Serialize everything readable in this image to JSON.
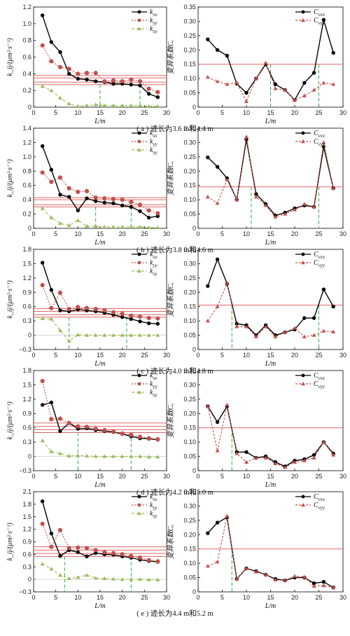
{
  "chart_data": [
    {
      "id": "a-k",
      "type": "line",
      "xlabel": "L/m",
      "ylabel": "k_ij/(μm²·s⁻¹)",
      "xlim": [
        0,
        30
      ],
      "ylim": [
        0,
        1.2
      ],
      "xticks": [
        0,
        5,
        10,
        15,
        20,
        25,
        30
      ],
      "yticks": [
        0,
        0.2,
        0.4,
        0.6,
        0.8,
        1.0,
        1.2
      ],
      "ytick_labels": [
        "0",
        "0.2",
        "0.4",
        "0.6",
        "0.8",
        "1.0",
        "1.2"
      ],
      "x": [
        2,
        4,
        6,
        8,
        10,
        12,
        14,
        16,
        18,
        20,
        22,
        24,
        26,
        28
      ],
      "series": [
        {
          "name": "k_xx",
          "values": [
            1.1,
            0.78,
            0.66,
            0.4,
            0.34,
            0.33,
            0.31,
            0.3,
            0.28,
            0.28,
            0.27,
            0.26,
            0.16,
            0.12
          ]
        },
        {
          "name": "k_yy",
          "values": [
            0.74,
            0.55,
            0.48,
            0.46,
            0.4,
            0.41,
            0.41,
            0.31,
            0.32,
            0.31,
            0.33,
            0.31,
            0.22,
            0.18
          ]
        },
        {
          "name": "k_xy",
          "values": [
            0.25,
            0.2,
            0.11,
            0.04,
            0.01,
            0.02,
            0.03,
            0.02,
            0.02,
            0.02,
            0.02,
            0.02,
            0.01,
            0.01
          ]
        }
      ],
      "ref_lines": [
        0.38,
        0.35,
        0.3,
        0.27
      ],
      "vlines": [
        15,
        24
      ]
    },
    {
      "id": "a-c",
      "type": "line",
      "ylabel": "变异系数Cᵥ",
      "xlabel": "L/m",
      "xlim": [
        0,
        30
      ],
      "ylim": [
        0,
        0.35
      ],
      "xticks": [
        0,
        5,
        10,
        15,
        20,
        25,
        30
      ],
      "yticks": [
        0,
        0.05,
        0.1,
        0.15,
        0.2,
        0.25,
        0.3,
        0.35
      ],
      "ytick_labels": [
        "0",
        "0.05",
        "0.10",
        "0.15",
        "0.20",
        "0.25",
        "0.30",
        "0.35"
      ],
      "x": [
        2,
        4,
        6,
        8,
        10,
        12,
        14,
        16,
        18,
        20,
        22,
        24,
        26,
        28
      ],
      "series": [
        {
          "name": "C_vxx",
          "values": [
            0.237,
            0.2,
            0.18,
            0.082,
            0.05,
            0.1,
            0.15,
            0.08,
            0.06,
            0.025,
            0.085,
            0.12,
            0.305,
            0.19
          ]
        },
        {
          "name": "C_vyy",
          "values": [
            0.105,
            0.09,
            0.08,
            0.085,
            0.02,
            0.1,
            0.155,
            0.065,
            0.06,
            0.025,
            0.04,
            0.06,
            0.085,
            0.08
          ]
        }
      ],
      "ref_lines": [
        0.15
      ],
      "vlines": [
        15,
        25
      ]
    },
    {
      "id": "b-k",
      "type": "line",
      "xlabel": "L/m",
      "ylabel": "k_ij/(μm²·s⁻¹)",
      "xlim": [
        0,
        30
      ],
      "ylim": [
        0,
        1.4
      ],
      "xticks": [
        0,
        5,
        10,
        15,
        20,
        25,
        30
      ],
      "yticks": [
        0,
        0.2,
        0.4,
        0.6,
        0.8,
        1.0,
        1.2,
        1.4
      ],
      "ytick_labels": [
        "0",
        "0.2",
        "0.4",
        "0.6",
        "0.8",
        "1.0",
        "1.2",
        "1.4"
      ],
      "x": [
        2,
        4,
        6,
        8,
        10,
        12,
        14,
        16,
        18,
        20,
        22,
        24,
        26,
        28
      ],
      "series": [
        {
          "name": "k_xx",
          "values": [
            1.15,
            0.82,
            0.47,
            0.44,
            0.25,
            0.42,
            0.38,
            0.36,
            0.35,
            0.32,
            0.3,
            0.24,
            0.15,
            0.17
          ]
        },
        {
          "name": "k_yy",
          "values": [
            0.78,
            0.65,
            0.71,
            0.56,
            0.51,
            0.52,
            0.43,
            0.42,
            0.41,
            0.4,
            0.37,
            0.33,
            0.25,
            0.21
          ]
        },
        {
          "name": "k_xy",
          "values": [
            0.28,
            0.15,
            0.07,
            0.04,
            0.11,
            0.03,
            0.03,
            0.02,
            0.02,
            0.02,
            0.02,
            0.02,
            0.01,
            0.01
          ]
        }
      ],
      "ref_lines": [
        0.43,
        0.4,
        0.33,
        0.3
      ],
      "vlines": [
        14,
        22
      ]
    },
    {
      "id": "b-c",
      "type": "line",
      "ylabel": "变异系数Cᵥ",
      "xlabel": "L/m",
      "xlim": [
        0,
        30
      ],
      "ylim": [
        0,
        0.35
      ],
      "xticks": [
        0,
        5,
        10,
        15,
        20,
        25,
        30
      ],
      "yticks": [
        0,
        0.05,
        0.1,
        0.15,
        0.2,
        0.25,
        0.3,
        0.35
      ],
      "ytick_labels": [
        "0",
        "0.05",
        "0.10",
        "0.15",
        "0.20",
        "0.25",
        "0.30",
        "0.35"
      ],
      "x": [
        2,
        4,
        6,
        8,
        10,
        12,
        14,
        16,
        18,
        20,
        22,
        24,
        26,
        28
      ],
      "series": [
        {
          "name": "C_vxx",
          "values": [
            0.248,
            0.215,
            0.175,
            0.1,
            0.31,
            0.12,
            0.085,
            0.045,
            0.055,
            0.07,
            0.08,
            0.075,
            0.285,
            0.14
          ]
        },
        {
          "name": "C_vyy",
          "values": [
            0.11,
            0.088,
            0.17,
            0.1,
            0.32,
            0.11,
            0.08,
            0.04,
            0.05,
            0.065,
            0.085,
            0.075,
            0.3,
            0.14
          ]
        }
      ],
      "ref_lines": [
        0.145
      ],
      "vlines": [
        11,
        25
      ]
    },
    {
      "id": "c-k",
      "type": "line",
      "xlabel": "L/m",
      "ylabel": "k_ij/(μm²·s⁻¹)",
      "xlim": [
        0,
        30
      ],
      "ylim": [
        -0.3,
        1.8
      ],
      "xticks": [
        0,
        5,
        10,
        15,
        20,
        25,
        30
      ],
      "yticks": [
        -0.3,
        0,
        0.3,
        0.6,
        0.9,
        1.2,
        1.5,
        1.8
      ],
      "ytick_labels": [
        "−0.3",
        "0",
        "0.3",
        "0.6",
        "0.9",
        "1.2",
        "1.5",
        "1.8"
      ],
      "x": [
        2,
        4,
        6,
        8,
        10,
        12,
        14,
        16,
        18,
        20,
        22,
        24,
        26,
        28
      ],
      "series": [
        {
          "name": "k_xx",
          "values": [
            1.52,
            0.95,
            0.52,
            0.5,
            0.54,
            0.52,
            0.5,
            0.47,
            0.43,
            0.38,
            0.34,
            0.29,
            0.25,
            0.24
          ]
        },
        {
          "name": "k_yy",
          "values": [
            1.05,
            0.57,
            0.89,
            0.55,
            0.59,
            0.57,
            0.55,
            0.52,
            0.48,
            0.45,
            0.41,
            0.39,
            0.36,
            0.35
          ]
        },
        {
          "name": "k_xy",
          "values": [
            0.35,
            0.34,
            0.1,
            -0.12,
            0.01,
            0.0,
            0.0,
            0.0,
            0.0,
            0.0,
            0.0,
            0.0,
            0.0,
            0.0
          ]
        }
      ],
      "ref_lines": [
        0.56,
        0.5,
        0.43,
        0.38
      ],
      "vlines": [
        8,
        21
      ]
    },
    {
      "id": "c-c",
      "type": "line",
      "ylabel": "变异系数Cᵥ",
      "xlabel": "L/m",
      "xlim": [
        0,
        30
      ],
      "ylim": [
        0,
        0.35
      ],
      "xticks": [
        0,
        5,
        10,
        15,
        20,
        25,
        30
      ],
      "yticks": [
        0,
        0.05,
        0.1,
        0.15,
        0.2,
        0.25,
        0.3,
        0.35
      ],
      "ytick_labels": [
        "0",
        "0.05",
        "0.10",
        "0.15",
        "0.20",
        "0.25",
        "0.30",
        "0.35"
      ],
      "x": [
        2,
        4,
        6,
        8,
        10,
        12,
        14,
        16,
        18,
        20,
        22,
        24,
        26,
        28
      ],
      "series": [
        {
          "name": "C_vxx",
          "values": [
            0.222,
            0.315,
            0.23,
            0.09,
            0.085,
            0.05,
            0.085,
            0.05,
            0.06,
            0.07,
            0.11,
            0.11,
            0.21,
            0.15
          ]
        },
        {
          "name": "C_vyy",
          "values": [
            0.1,
            0.15,
            0.232,
            0.08,
            0.08,
            0.045,
            0.08,
            0.045,
            0.06,
            0.075,
            0.045,
            0.05,
            0.065,
            0.062
          ]
        }
      ],
      "ref_lines": [
        0.155
      ],
      "vlines": [
        7,
        25
      ]
    },
    {
      "id": "d-k",
      "type": "line",
      "xlabel": "L/m",
      "ylabel": "k_ij/(μm²·s⁻¹)",
      "xlim": [
        0,
        30
      ],
      "ylim": [
        -0.3,
        1.8
      ],
      "xticks": [
        0,
        5,
        10,
        15,
        20,
        25,
        30
      ],
      "yticks": [
        -0.3,
        0,
        0.3,
        0.6,
        0.9,
        1.2,
        1.5,
        1.8
      ],
      "ytick_labels": [
        "−0.3",
        "0",
        "0.3",
        "0.6",
        "0.9",
        "1.2",
        "1.5",
        "1.8"
      ],
      "x": [
        2,
        4,
        6,
        8,
        10,
        12,
        14,
        16,
        18,
        20,
        22,
        24,
        26,
        28
      ],
      "series": [
        {
          "name": "k_xx",
          "values": [
            1.08,
            1.13,
            0.53,
            0.7,
            0.58,
            0.59,
            0.55,
            0.53,
            0.51,
            0.47,
            0.42,
            0.38,
            0.37,
            0.35
          ]
        },
        {
          "name": "k_yy",
          "values": [
            1.58,
            0.78,
            0.79,
            0.7,
            0.63,
            0.62,
            0.58,
            0.55,
            0.52,
            0.48,
            0.45,
            0.41,
            0.38,
            0.36
          ]
        },
        {
          "name": "k_xy",
          "values": [
            0.33,
            0.1,
            0.06,
            0.01,
            0.02,
            0.01,
            0.0,
            0.0,
            0.0,
            0.0,
            0.0,
            0.0,
            -0.01,
            -0.01
          ]
        }
      ],
      "ref_lines": [
        0.7,
        0.63,
        0.56,
        0.5
      ],
      "vlines": [
        10,
        22
      ]
    },
    {
      "id": "d-c",
      "type": "line",
      "ylabel": "变异系数Cᵥ",
      "xlabel": "L/m",
      "xlim": [
        0,
        30
      ],
      "ylim": [
        0,
        0.35
      ],
      "xticks": [
        0,
        5,
        10,
        15,
        20,
        25,
        30
      ],
      "yticks": [
        0,
        0.05,
        0.1,
        0.15,
        0.2,
        0.25,
        0.3,
        0.35
      ],
      "ytick_labels": [
        "0",
        "0.05",
        "0.10",
        "0.15",
        "0.20",
        "0.25",
        "0.30",
        "0.35"
      ],
      "x": [
        2,
        4,
        6,
        8,
        10,
        12,
        14,
        16,
        18,
        20,
        22,
        24,
        26,
        28
      ],
      "series": [
        {
          "name": "C_vxx",
          "values": [
            0.225,
            0.17,
            0.225,
            0.065,
            0.065,
            0.045,
            0.05,
            0.03,
            0.015,
            0.035,
            0.04,
            0.055,
            0.1,
            0.06
          ]
        },
        {
          "name": "C_vyy",
          "values": [
            0.225,
            0.07,
            0.23,
            0.06,
            0.03,
            0.045,
            0.045,
            0.025,
            0.012,
            0.03,
            0.035,
            0.045,
            0.1,
            0.055
          ]
        }
      ],
      "ref_lines": [
        0.15
      ],
      "vlines": [
        7
      ]
    },
    {
      "id": "e-k",
      "type": "line",
      "xlabel": "L/m",
      "ylabel": "k_ij/(μm²·s⁻¹)",
      "xlim": [
        0,
        30
      ],
      "ylim": [
        -0.3,
        2.1
      ],
      "xticks": [
        0,
        5,
        10,
        15,
        20,
        25,
        30
      ],
      "yticks": [
        -0.3,
        0,
        0.3,
        0.6,
        0.9,
        1.2,
        1.5,
        1.8,
        2.1
      ],
      "ytick_labels": [
        "−0.3",
        "0",
        "0.3",
        "0.6",
        "0.9",
        "1.2",
        "1.5",
        "1.8",
        "2.1"
      ],
      "x": [
        2,
        4,
        6,
        8,
        10,
        12,
        14,
        16,
        18,
        20,
        22,
        24,
        26,
        28
      ],
      "series": [
        {
          "name": "k_xx",
          "values": [
            1.87,
            1.1,
            0.56,
            0.7,
            0.65,
            0.55,
            0.63,
            0.6,
            0.59,
            0.55,
            0.52,
            0.47,
            0.44,
            0.42
          ]
        },
        {
          "name": "k_yy",
          "values": [
            1.33,
            0.78,
            1.18,
            0.75,
            0.76,
            0.75,
            0.7,
            0.65,
            0.63,
            0.6,
            0.56,
            0.52,
            0.46,
            0.43
          ]
        },
        {
          "name": "k_xy",
          "values": [
            0.37,
            0.25,
            0.1,
            0.02,
            0.05,
            0.1,
            0.03,
            0.02,
            0.01,
            0.0,
            0.0,
            0.0,
            -0.01,
            -0.01
          ]
        }
      ],
      "ref_lines": [
        0.78,
        0.7,
        0.62,
        0.55
      ],
      "vlines": [
        7,
        22
      ]
    },
    {
      "id": "e-c",
      "type": "line",
      "ylabel": "变异系数Cᵥ",
      "xlabel": "L/m",
      "xlim": [
        0,
        30
      ],
      "ylim": [
        0,
        0.35
      ],
      "xticks": [
        0,
        5,
        10,
        15,
        20,
        25,
        30
      ],
      "yticks": [
        0,
        0.05,
        0.1,
        0.15,
        0.2,
        0.25,
        0.3,
        0.35
      ],
      "ytick_labels": [
        "0",
        "0.05",
        "0.10",
        "0.15",
        "0.20",
        "0.25",
        "0.30",
        "0.35"
      ],
      "x": [
        2,
        4,
        6,
        8,
        10,
        12,
        14,
        16,
        18,
        20,
        22,
        24,
        26,
        28
      ],
      "series": [
        {
          "name": "C_vxx",
          "values": [
            0.205,
            0.242,
            0.26,
            0.045,
            0.082,
            0.072,
            0.06,
            0.045,
            0.04,
            0.05,
            0.05,
            0.03,
            0.035,
            0.015
          ]
        },
        {
          "name": "C_vyy",
          "values": [
            0.09,
            0.105,
            0.265,
            0.045,
            0.082,
            0.07,
            0.06,
            0.042,
            0.04,
            0.055,
            0.052,
            0.02,
            0.022,
            0.015
          ]
        }
      ],
      "ref_lines": [
        0.15
      ],
      "vlines": [
        7
      ]
    }
  ],
  "captions": [
    "( a ) 迹长为3.6 m和4.4 m",
    "( b ) 迹长为3.8 m和4.6 m",
    "( c ) 迹长为4.0 m和4.8 m",
    "( d ) 迹长为4.2 m和5.0 m",
    "( e ) 迹长为4.4 m和5.2 m"
  ],
  "legend_k": [
    "k_xx",
    "k_yy",
    "k_xy"
  ],
  "legend_c": [
    "C_vxx",
    "C_vyy"
  ],
  "colors": {
    "k_xx": "#000000",
    "k_yy": "#c0504d",
    "k_xy": "#9bbb59",
    "C_vxx": "#000000",
    "C_vyy": "#c0504d",
    "ref_line": "#e06666",
    "vline": "#33aa44"
  }
}
